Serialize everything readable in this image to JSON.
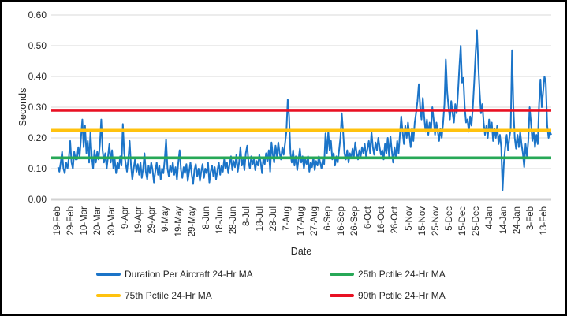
{
  "chart_data": {
    "type": "line",
    "title": "",
    "xlabel": "Date",
    "ylabel": "Seconds",
    "ylim": [
      0,
      0.6
    ],
    "y_tick_step": 0.1,
    "y_tick_labels": [
      "0.00",
      "0.10",
      "0.20",
      "0.30",
      "0.40",
      "0.50",
      "0.60"
    ],
    "x_tick_labels": [
      "19-Feb",
      "29-Feb",
      "10-Mar",
      "20-Mar",
      "30-Mar",
      "9-Apr",
      "19-Apr",
      "29-Apr",
      "9-May",
      "19-May",
      "29-May",
      "8-Jun",
      "18-Jun",
      "28-Jun",
      "8-Jul",
      "18-Jul",
      "28-Jul",
      "7-Aug",
      "17-Aug",
      "27-Aug",
      "6-Sep",
      "16-Sep",
      "26-Sep",
      "6-Oct",
      "16-Oct",
      "26-Oct",
      "5-Nov",
      "15-Nov",
      "25-Nov",
      "5-Dec",
      "15-Dec",
      "25-Dec",
      "4-Jan",
      "14-Jan",
      "24-Jan",
      "3-Feb",
      "13-Feb"
    ],
    "days_per_tick": 10,
    "days_per_point": 1,
    "grid": true,
    "gridline_color": "#DADADA",
    "axis_line_color": "#D2D2D2",
    "legend_position": "bottom",
    "series": [
      {
        "name": "Duration Per Aircraft 24-Hr MA",
        "type": "line",
        "color": "#1B74C8",
        "x_unit": "days since 19-Feb",
        "values": [
          0.105,
          0.09,
          0.12,
          0.155,
          0.1,
          0.085,
          0.12,
          0.1,
          0.135,
          0.19,
          0.12,
          0.1,
          0.155,
          0.13,
          0.13,
          0.17,
          0.14,
          0.2,
          0.26,
          0.17,
          0.24,
          0.15,
          0.19,
          0.12,
          0.22,
          0.14,
          0.1,
          0.16,
          0.12,
          0.155,
          0.13,
          0.18,
          0.26,
          0.16,
          0.12,
          0.15,
          0.1,
          0.14,
          0.18,
          0.12,
          0.16,
          0.1,
          0.13,
          0.085,
          0.12,
          0.1,
          0.14,
          0.11,
          0.245,
          0.15,
          0.12,
          0.09,
          0.13,
          0.19,
          0.11,
          0.065,
          0.1,
          0.13,
          0.09,
          0.115,
          0.08,
          0.12,
          0.07,
          0.1,
          0.15,
          0.09,
          0.065,
          0.11,
          0.085,
          0.12,
          0.095,
          0.055,
          0.09,
          0.12,
          0.08,
          0.11,
          0.065,
          0.1,
          0.085,
          0.13,
          0.195,
          0.1,
          0.075,
          0.11,
          0.09,
          0.12,
          0.08,
          0.105,
          0.065,
          0.12,
          0.16,
          0.095,
          0.07,
          0.105,
          0.085,
          0.115,
          0.06,
          0.09,
          0.12,
          0.08,
          0.05,
          0.095,
          0.115,
          0.075,
          0.1,
          0.06,
          0.09,
          0.115,
          0.07,
          0.1,
          0.085,
          0.12,
          0.055,
          0.09,
          0.11,
          0.075,
          0.105,
          0.065,
          0.095,
          0.12,
          0.08,
          0.11,
          0.09,
          0.13,
          0.1,
          0.12,
          0.085,
          0.115,
          0.14,
          0.095,
          0.125,
          0.105,
          0.145,
          0.09,
          0.12,
          0.17,
          0.11,
          0.13,
          0.095,
          0.15,
          0.175,
          0.12,
          0.1,
          0.14,
          0.115,
          0.13,
          0.095,
          0.125,
          0.11,
          0.145,
          0.12,
          0.085,
          0.135,
          0.115,
          0.15,
          0.125,
          0.16,
          0.09,
          0.185,
          0.145,
          0.12,
          0.175,
          0.14,
          0.185,
          0.15,
          0.13,
          0.17,
          0.145,
          0.18,
          0.22,
          0.325,
          0.27,
          0.15,
          0.12,
          0.16,
          0.11,
          0.14,
          0.095,
          0.13,
          0.165,
          0.12,
          0.14,
          0.1,
          0.13,
          0.115,
          0.14,
          0.09,
          0.12,
          0.105,
          0.135,
          0.095,
          0.125,
          0.11,
          0.14,
          0.12,
          0.1,
          0.13,
          0.115,
          0.215,
          0.15,
          0.22,
          0.16,
          0.19,
          0.13,
          0.15,
          0.11,
          0.14,
          0.12,
          0.16,
          0.2,
          0.28,
          0.22,
          0.15,
          0.13,
          0.16,
          0.12,
          0.15,
          0.135,
          0.165,
          0.14,
          0.185,
          0.15,
          0.13,
          0.16,
          0.14,
          0.17,
          0.15,
          0.18,
          0.14,
          0.165,
          0.19,
          0.15,
          0.22,
          0.17,
          0.145,
          0.185,
          0.16,
          0.2,
          0.17,
          0.145,
          0.16,
          0.13,
          0.18,
          0.15,
          0.2,
          0.14,
          0.205,
          0.16,
          0.12,
          0.17,
          0.135,
          0.19,
          0.15,
          0.21,
          0.27,
          0.22,
          0.18,
          0.24,
          0.2,
          0.25,
          0.21,
          0.17,
          0.23,
          0.19,
          0.25,
          0.28,
          0.32,
          0.375,
          0.3,
          0.26,
          0.33,
          0.27,
          0.22,
          0.26,
          0.21,
          0.25,
          0.22,
          0.3,
          0.26,
          0.21,
          0.25,
          0.22,
          0.19,
          0.23,
          0.2,
          0.25,
          0.31,
          0.455,
          0.35,
          0.3,
          0.26,
          0.32,
          0.28,
          0.25,
          0.31,
          0.28,
          0.35,
          0.43,
          0.5,
          0.38,
          0.395,
          0.3,
          0.25,
          0.26,
          0.22,
          0.27,
          0.24,
          0.3,
          0.38,
          0.47,
          0.55,
          0.44,
          0.35,
          0.28,
          0.31,
          0.25,
          0.21,
          0.24,
          0.2,
          0.26,
          0.22,
          0.25,
          0.19,
          0.23,
          0.2,
          0.24,
          0.18,
          0.21,
          0.17,
          0.03,
          0.12,
          0.17,
          0.21,
          0.16,
          0.2,
          0.23,
          0.485,
          0.3,
          0.2,
          0.165,
          0.21,
          0.17,
          0.22,
          0.18,
          0.15,
          0.105,
          0.18,
          0.14,
          0.19,
          0.3,
          0.25,
          0.19,
          0.22,
          0.17,
          0.21,
          0.18,
          0.31,
          0.39,
          0.3,
          0.35,
          0.4,
          0.38,
          0.24,
          0.2,
          0.22,
          0.21
        ]
      },
      {
        "name": "25th Pctile 24-Hr MA",
        "type": "hline",
        "color": "#27A857",
        "value": 0.135
      },
      {
        "name": "75th Pctile 24-Hr MA",
        "type": "hline",
        "color": "#FFC20E",
        "value": 0.225
      },
      {
        "name": "90th Pctile 24-Hr MA",
        "type": "hline",
        "color": "#E81123",
        "value": 0.29
      }
    ],
    "legend": [
      {
        "label": "Duration Per Aircraft 24-Hr MA",
        "color": "#1B74C8"
      },
      {
        "label": "25th Pctile 24-Hr MA",
        "color": "#27A857"
      },
      {
        "label": "75th Pctile 24-Hr MA",
        "color": "#FFC20E"
      },
      {
        "label": "90th Pctile 24-Hr MA",
        "color": "#E81123"
      }
    ]
  }
}
